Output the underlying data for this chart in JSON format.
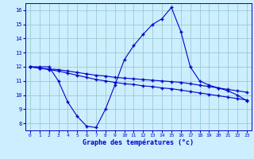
{
  "hours": [
    0,
    1,
    2,
    3,
    4,
    5,
    6,
    7,
    8,
    9,
    10,
    11,
    12,
    13,
    14,
    15,
    16,
    17,
    18,
    19,
    20,
    21,
    22,
    23
  ],
  "temp_max": [
    12,
    12,
    12,
    11,
    9.5,
    8.5,
    7.8,
    7.7,
    9.0,
    10.7,
    12.5,
    13.5,
    14.3,
    15.0,
    15.4,
    16.2,
    14.5,
    12.0,
    11.0,
    10.7,
    10.5,
    10.3,
    10.0,
    9.6
  ],
  "temp_avg": [
    12,
    11.9,
    11.85,
    11.8,
    11.7,
    11.6,
    11.5,
    11.4,
    11.35,
    11.25,
    11.2,
    11.15,
    11.1,
    11.05,
    11.0,
    10.95,
    10.9,
    10.8,
    10.7,
    10.6,
    10.5,
    10.4,
    10.3,
    10.2
  ],
  "temp_min": [
    12,
    11.9,
    11.8,
    11.7,
    11.55,
    11.4,
    11.25,
    11.1,
    11.0,
    10.9,
    10.8,
    10.75,
    10.65,
    10.6,
    10.5,
    10.45,
    10.35,
    10.25,
    10.15,
    10.05,
    9.95,
    9.85,
    9.75,
    9.65
  ],
  "line_color": "#0000cc",
  "bg_color": "#cceeff",
  "grid_color": "#99cccc",
  "xlabel": "Graphe des températures (°c)",
  "ylim": [
    7.5,
    16.5
  ],
  "xlim": [
    -0.5,
    23.5
  ],
  "yticks": [
    8,
    9,
    10,
    11,
    12,
    13,
    14,
    15,
    16
  ],
  "xticks": [
    0,
    1,
    2,
    3,
    4,
    5,
    6,
    7,
    8,
    9,
    10,
    11,
    12,
    13,
    14,
    15,
    16,
    17,
    18,
    19,
    20,
    21,
    22,
    23
  ]
}
